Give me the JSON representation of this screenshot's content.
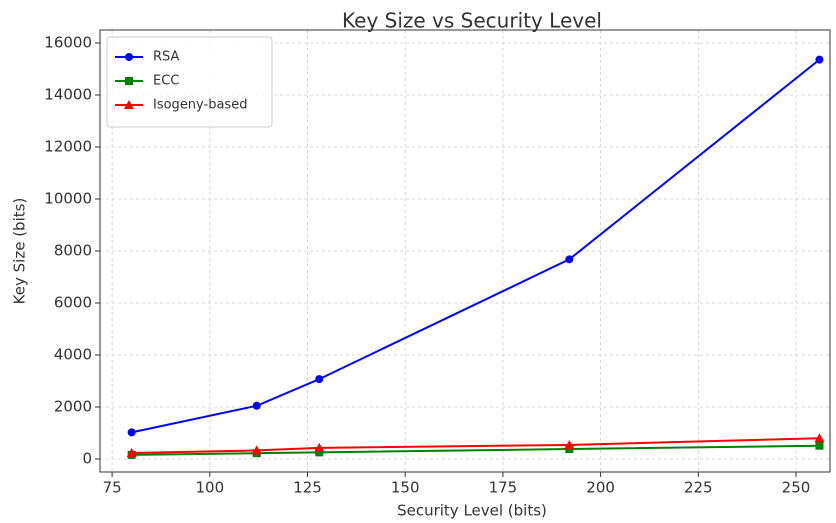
{
  "chart_data": {
    "type": "line",
    "title": "Key Size vs Security Level",
    "x_label": "Security Level (bits)",
    "y_label": "Key Size (bits)",
    "x": [
      80,
      112,
      128,
      192,
      256
    ],
    "series": [
      {
        "name": "RSA",
        "color": "#0000ff",
        "marker": "circle",
        "values": [
          1024,
          2048,
          3072,
          7680,
          15360
        ]
      },
      {
        "name": "ECC",
        "color": "#008000",
        "marker": "square",
        "values": [
          160,
          224,
          256,
          384,
          512
        ]
      },
      {
        "name": "Isogeny-based",
        "color": "#ff0000",
        "marker": "triangle",
        "values": [
          230,
          330,
          430,
          540,
          800
        ]
      }
    ],
    "xlim": [
      71.9,
      258.7
    ],
    "xticks": [
      75,
      100,
      125,
      150,
      175,
      200,
      225,
      250
    ],
    "ylim": [
      -500,
      16500
    ],
    "yticks": [
      0,
      2000,
      4000,
      6000,
      8000,
      10000,
      12000,
      14000,
      16000
    ],
    "grid": true,
    "legend": "upper left"
  }
}
